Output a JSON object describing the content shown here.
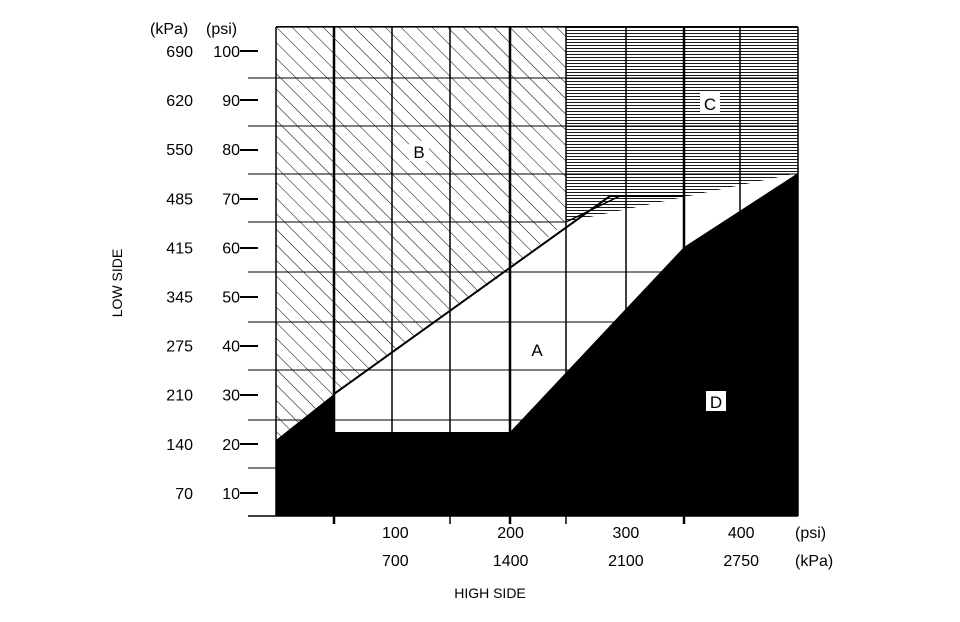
{
  "diagram": {
    "y_axis": {
      "title": "LOW SIDE",
      "unit_kpa": "(kPa)",
      "unit_psi": "(psi)",
      "ticks": [
        {
          "kpa": "690",
          "psi": "100",
          "value": 100
        },
        {
          "kpa": "620",
          "psi": "90",
          "value": 90
        },
        {
          "kpa": "550",
          "psi": "80",
          "value": 80
        },
        {
          "kpa": "485",
          "psi": "70",
          "value": 70
        },
        {
          "kpa": "415",
          "psi": "60",
          "value": 60
        },
        {
          "kpa": "345",
          "psi": "50",
          "value": 50
        },
        {
          "kpa": "275",
          "psi": "40",
          "value": 40
        },
        {
          "kpa": "210",
          "psi": "30",
          "value": 30
        },
        {
          "kpa": "140",
          "psi": "20",
          "value": 20
        },
        {
          "kpa": "70",
          "psi": "10",
          "value": 10
        }
      ]
    },
    "x_axis": {
      "title": "HIGH SIDE",
      "unit_psi": "(psi)",
      "unit_kpa": "(kPa)",
      "ticks": [
        {
          "psi": "100",
          "kpa": "700",
          "value": 100
        },
        {
          "psi": "200",
          "kpa": "1400",
          "value": 200
        },
        {
          "psi": "300",
          "kpa": "2100",
          "value": 300
        },
        {
          "psi": "400",
          "kpa": "2750",
          "value": 400
        }
      ]
    },
    "regions": [
      {
        "id": "A",
        "label": "A",
        "fill": "white"
      },
      {
        "id": "B",
        "label": "B",
        "fill": "diagonal-hatch"
      },
      {
        "id": "C",
        "label": "C",
        "fill": "horizontal-hatch"
      },
      {
        "id": "D",
        "label": "D",
        "fill": "solid-black"
      }
    ],
    "colors": {
      "ink": "#000000",
      "paper": "#ffffff"
    }
  }
}
